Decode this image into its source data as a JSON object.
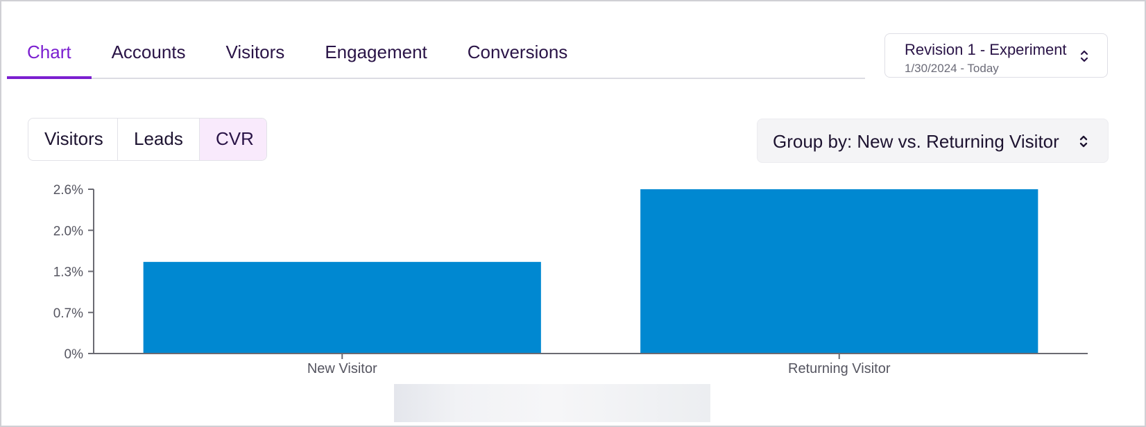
{
  "tabs": [
    {
      "label": "Chart",
      "active": true
    },
    {
      "label": "Accounts",
      "active": false
    },
    {
      "label": "Visitors",
      "active": false
    },
    {
      "label": "Engagement",
      "active": false
    },
    {
      "label": "Conversions",
      "active": false
    }
  ],
  "revision": {
    "title": "Revision 1 - Experiment",
    "date_range": "1/30/2024 - Today",
    "icon": "chevron-up-down-icon"
  },
  "metrics": [
    {
      "label": "Visitors",
      "selected": false
    },
    {
      "label": "Leads",
      "selected": false
    },
    {
      "label": "CVR",
      "selected": true
    }
  ],
  "group_by": {
    "label": "Group by: New vs. Returning Visitor",
    "icon": "chevron-up-down-icon"
  },
  "colors": {
    "accent": "#7b1fd0",
    "bar": "#0088d1",
    "selected_metric_bg": "#f9eafc"
  },
  "chart_data": {
    "type": "bar",
    "categories": [
      "New Visitor",
      "Returning Visitor"
    ],
    "values": [
      1.45,
      2.6
    ],
    "yticks": [
      0,
      0.65,
      1.3,
      1.95,
      2.6
    ],
    "ytick_labels": [
      "0%",
      "0.7%",
      "1.3%",
      "2.0%",
      "2.6%"
    ],
    "ylim": [
      0,
      2.6
    ],
    "unit": "%",
    "title": "",
    "xlabel": "",
    "ylabel": "",
    "grid": false,
    "legend": "none"
  }
}
